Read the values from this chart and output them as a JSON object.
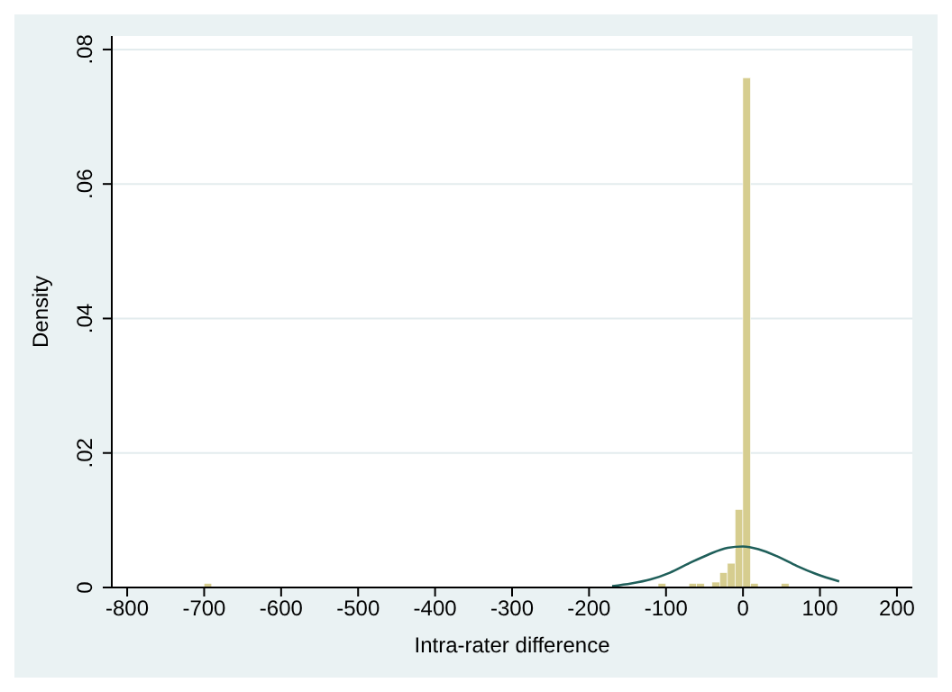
{
  "chart_data": {
    "type": "histogram",
    "xlabel": "Intra-rater difference",
    "ylabel": "Density",
    "color": "#d6cd8f",
    "bins": [
      -700,
      -690,
      -680,
      -670,
      -660,
      -650,
      -640,
      -630,
      -620,
      -610,
      -600,
      -590,
      -580,
      -570,
      -560,
      -550,
      -540,
      -530,
      -520,
      -510,
      -500,
      -490,
      -480,
      -470,
      -460,
      -450,
      -440,
      -430,
      -420,
      -410,
      -400,
      -390,
      -380,
      -370,
      -360,
      -350,
      -340,
      -330,
      -320,
      -310,
      -300,
      -290,
      -280,
      -270,
      -260,
      -250,
      -240,
      -230,
      -220,
      -210,
      -200,
      -190,
      -180,
      -170,
      -160,
      -150,
      -140,
      -130,
      -120,
      -110,
      -100,
      -90,
      -80,
      -70,
      -60,
      -50,
      -40,
      -30,
      -20,
      -10,
      0,
      10,
      20,
      30,
      40,
      50,
      60
    ],
    "values": [
      0.0006,
      0,
      0,
      0,
      0,
      0,
      0,
      0,
      0,
      0,
      0,
      0,
      0,
      0,
      0,
      0,
      0,
      0,
      0,
      0,
      0,
      0,
      0,
      0,
      0,
      0,
      0,
      0,
      0,
      0,
      0,
      0,
      0,
      0,
      0,
      0,
      0,
      0,
      0,
      0,
      0,
      0,
      0,
      0,
      0,
      0,
      0,
      0,
      0,
      0,
      0,
      0,
      0,
      0,
      0,
      0,
      0,
      0,
      0,
      0.0006,
      0,
      0,
      0,
      0.0006,
      0.0006,
      0,
      0.0008,
      0.0022,
      0.0036,
      0.0116,
      0.0758,
      0.0006,
      0,
      0,
      0,
      0.0006
    ],
    "series": [
      {
        "type": "line",
        "color": "#1f5f5a",
        "x": [
          -170,
          -145,
          -120,
          -95,
          -70,
          -45,
          -20,
          0,
          20,
          45,
          70,
          95,
          125
        ],
        "values": [
          0.0002,
          0.0006,
          0.0012,
          0.0022,
          0.0036,
          0.0049,
          0.0059,
          0.0061,
          0.0057,
          0.0046,
          0.0032,
          0.002,
          0.0009
        ]
      }
    ],
    "xlim": [
      -820,
      220
    ],
    "xticks": [
      -800,
      -700,
      -600,
      -500,
      -400,
      -300,
      -200,
      -100,
      0,
      100,
      200
    ],
    "ylim": [
      0,
      0.082
    ],
    "yticks": [
      0,
      {
        "value": 0.02,
        "label": ".02"
      },
      {
        "value": 0.04,
        "label": ".04"
      },
      {
        "value": 0.06,
        "label": ".06"
      },
      {
        "value": 0.08,
        "label": ".08"
      }
    ],
    "grid": "y",
    "marker": "none",
    "line_style": "solid"
  }
}
